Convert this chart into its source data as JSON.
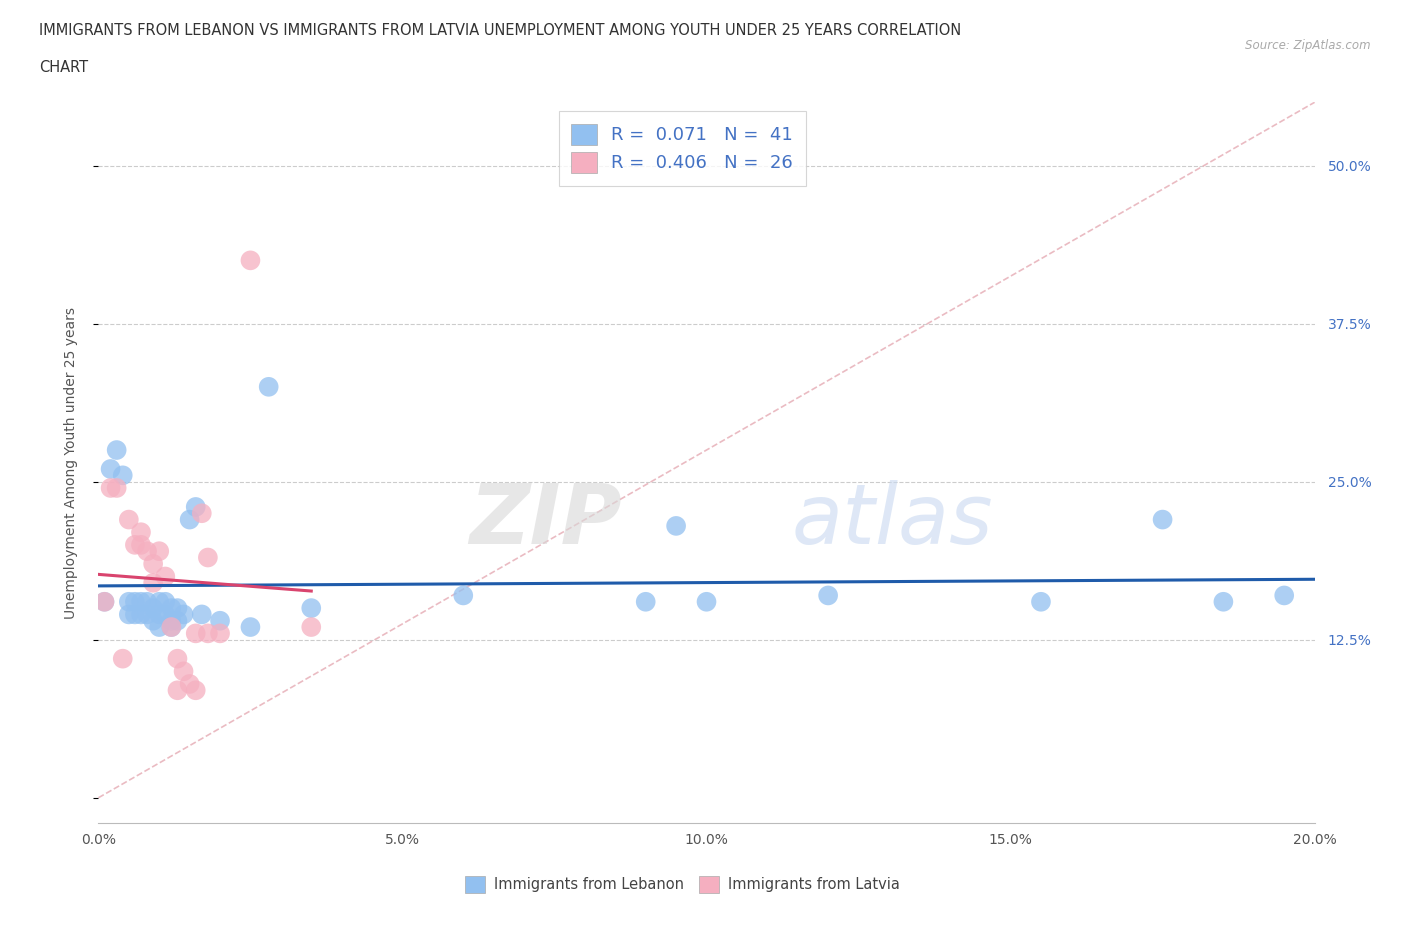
{
  "title_line1": "IMMIGRANTS FROM LEBANON VS IMMIGRANTS FROM LATVIA UNEMPLOYMENT AMONG YOUTH UNDER 25 YEARS CORRELATION",
  "title_line2": "CHART",
  "source": "Source: ZipAtlas.com",
  "ylabel": "Unemployment Among Youth under 25 years",
  "xlim": [
    0.0,
    0.2
  ],
  "ylim": [
    -0.02,
    0.55
  ],
  "xticks": [
    0.0,
    0.05,
    0.1,
    0.15,
    0.2
  ],
  "xtick_labels": [
    "0.0%",
    "5.0%",
    "10.0%",
    "15.0%",
    "20.0%"
  ],
  "yticks": [
    0.0,
    0.125,
    0.25,
    0.375,
    0.5
  ],
  "ytick_labels": [
    "",
    "12.5%",
    "25.0%",
    "37.5%",
    "50.0%"
  ],
  "lebanon_R": 0.071,
  "lebanon_N": 41,
  "latvia_R": 0.406,
  "latvia_N": 26,
  "legend_label_1": "Immigrants from Lebanon",
  "legend_label_2": "Immigrants from Latvia",
  "color_lebanon": "#92c0f0",
  "color_latvia": "#f5afc0",
  "color_lebanon_line": "#1f5baa",
  "color_latvia_line": "#d9446e",
  "color_diag": "#d8a0a8",
  "lebanon_x": [
    0.001,
    0.002,
    0.003,
    0.004,
    0.005,
    0.005,
    0.006,
    0.006,
    0.007,
    0.007,
    0.008,
    0.008,
    0.009,
    0.009,
    0.01,
    0.01,
    0.01,
    0.011,
    0.011,
    0.012,
    0.012,
    0.012,
    0.013,
    0.013,
    0.014,
    0.015,
    0.016,
    0.017,
    0.02,
    0.025,
    0.028,
    0.035,
    0.06,
    0.09,
    0.095,
    0.1,
    0.12,
    0.155,
    0.175,
    0.185,
    0.195
  ],
  "lebanon_y": [
    0.155,
    0.26,
    0.275,
    0.255,
    0.155,
    0.145,
    0.155,
    0.145,
    0.155,
    0.145,
    0.155,
    0.145,
    0.15,
    0.14,
    0.155,
    0.145,
    0.135,
    0.155,
    0.145,
    0.15,
    0.14,
    0.135,
    0.15,
    0.14,
    0.145,
    0.22,
    0.23,
    0.145,
    0.14,
    0.135,
    0.325,
    0.15,
    0.16,
    0.155,
    0.215,
    0.155,
    0.16,
    0.155,
    0.22,
    0.155,
    0.16
  ],
  "latvia_x": [
    0.001,
    0.002,
    0.003,
    0.004,
    0.005,
    0.006,
    0.007,
    0.007,
    0.008,
    0.009,
    0.009,
    0.01,
    0.011,
    0.012,
    0.013,
    0.013,
    0.014,
    0.015,
    0.016,
    0.016,
    0.017,
    0.018,
    0.018,
    0.02,
    0.025,
    0.035
  ],
  "latvia_y": [
    0.155,
    0.245,
    0.245,
    0.11,
    0.22,
    0.2,
    0.21,
    0.2,
    0.195,
    0.185,
    0.17,
    0.195,
    0.175,
    0.135,
    0.11,
    0.085,
    0.1,
    0.09,
    0.085,
    0.13,
    0.225,
    0.13,
    0.19,
    0.13,
    0.425,
    0.135
  ]
}
